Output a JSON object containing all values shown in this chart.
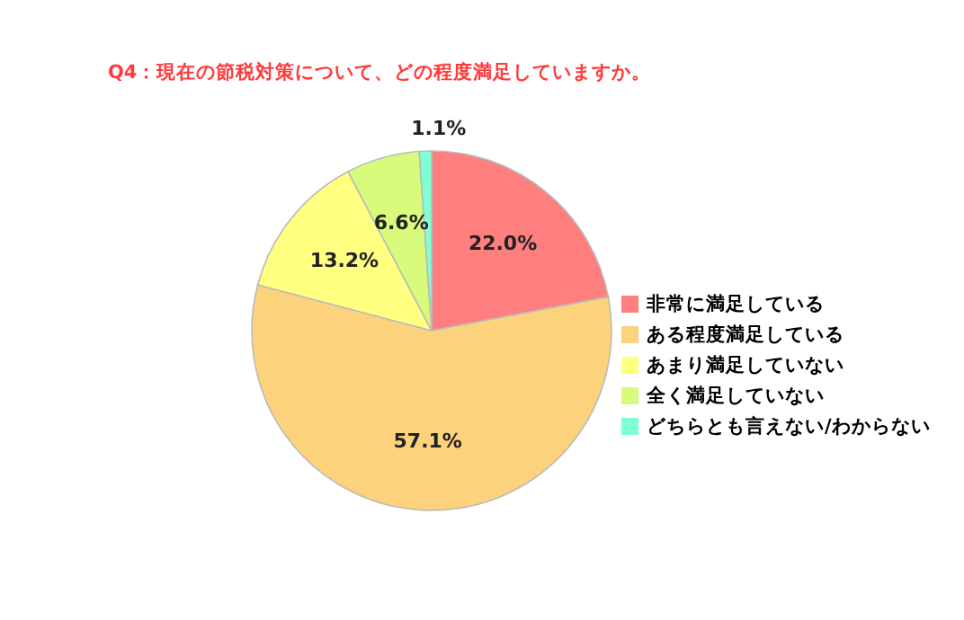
{
  "chart_data": {
    "type": "pie",
    "title": "Q4：現在の節税対策について、どの程度満足していますか。",
    "categories": [
      "非常に満足している",
      "ある程度満足している",
      "あまり満足していない",
      "全く満足していない",
      "どちらとも言えない/わからない"
    ],
    "values": [
      22.0,
      57.1,
      13.2,
      6.6,
      1.1
    ],
    "value_labels": [
      "22.0%",
      "57.1%",
      "13.2%",
      "6.6%",
      "1.1%"
    ],
    "colors": [
      "#ff7f7f",
      "#fdd27c",
      "#ffff80",
      "#d9fb7b",
      "#7fffd4"
    ],
    "legend": "right"
  }
}
